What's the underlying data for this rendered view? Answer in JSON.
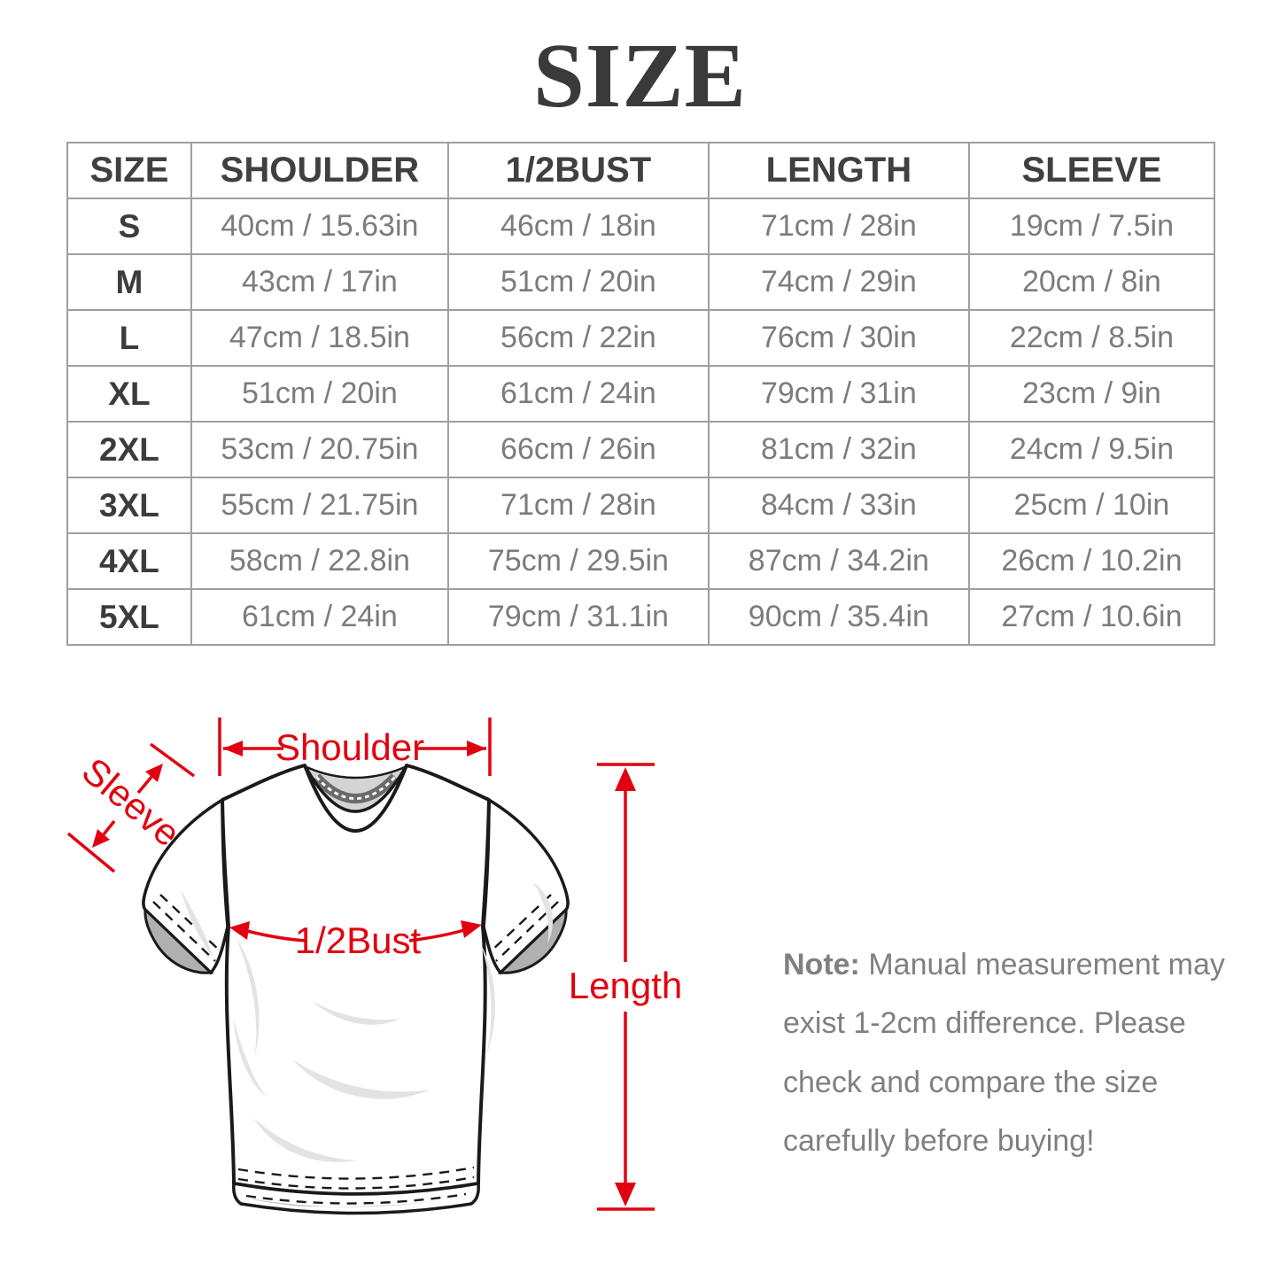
{
  "title": "SIZE",
  "table": {
    "columns": [
      "SIZE",
      "SHOULDER",
      "1/2BUST",
      "LENGTH",
      "SLEEVE"
    ],
    "rows": [
      {
        "size": "S",
        "shoulder": "40cm / 15.63in",
        "bust": "46cm / 18in",
        "length": "71cm / 28in",
        "sleeve": "19cm / 7.5in"
      },
      {
        "size": "M",
        "shoulder": "43cm / 17in",
        "bust": "51cm / 20in",
        "length": "74cm / 29in",
        "sleeve": "20cm / 8in"
      },
      {
        "size": "L",
        "shoulder": "47cm / 18.5in",
        "bust": "56cm / 22in",
        "length": "76cm / 30in",
        "sleeve": "22cm / 8.5in"
      },
      {
        "size": "XL",
        "shoulder": "51cm / 20in",
        "bust": "61cm / 24in",
        "length": "79cm / 31in",
        "sleeve": "23cm / 9in"
      },
      {
        "size": "2XL",
        "shoulder": "53cm / 20.75in",
        "bust": "66cm / 26in",
        "length": "81cm / 32in",
        "sleeve": "24cm / 9.5in"
      },
      {
        "size": "3XL",
        "shoulder": "55cm / 21.75in",
        "bust": "71cm / 28in",
        "length": "84cm / 33in",
        "sleeve": "25cm / 10in"
      },
      {
        "size": "4XL",
        "shoulder": "58cm / 22.8in",
        "bust": "75cm / 29.5in",
        "length": "87cm / 34.2in",
        "sleeve": "26cm / 10.2in"
      },
      {
        "size": "5XL",
        "shoulder": "61cm / 24in",
        "bust": "79cm / 31.1in",
        "length": "90cm / 35.4in",
        "sleeve": "27cm / 10.6in"
      }
    ]
  },
  "diagram": {
    "labels": {
      "shoulder": "Shoulder",
      "sleeve": "Sleeve",
      "bust": "1/2Bust",
      "length": "Length"
    }
  },
  "note": {
    "label": "Note:",
    "text": "Manual measurement may exist 1-2cm difference. Please check and compare the size carefully before buying!"
  },
  "colors": {
    "accent_red": "#e1000f",
    "title_text": "#3a3a3a",
    "cell_text": "#7c7c7c",
    "table_border": "#9f9f9f",
    "note_text": "#808080"
  }
}
